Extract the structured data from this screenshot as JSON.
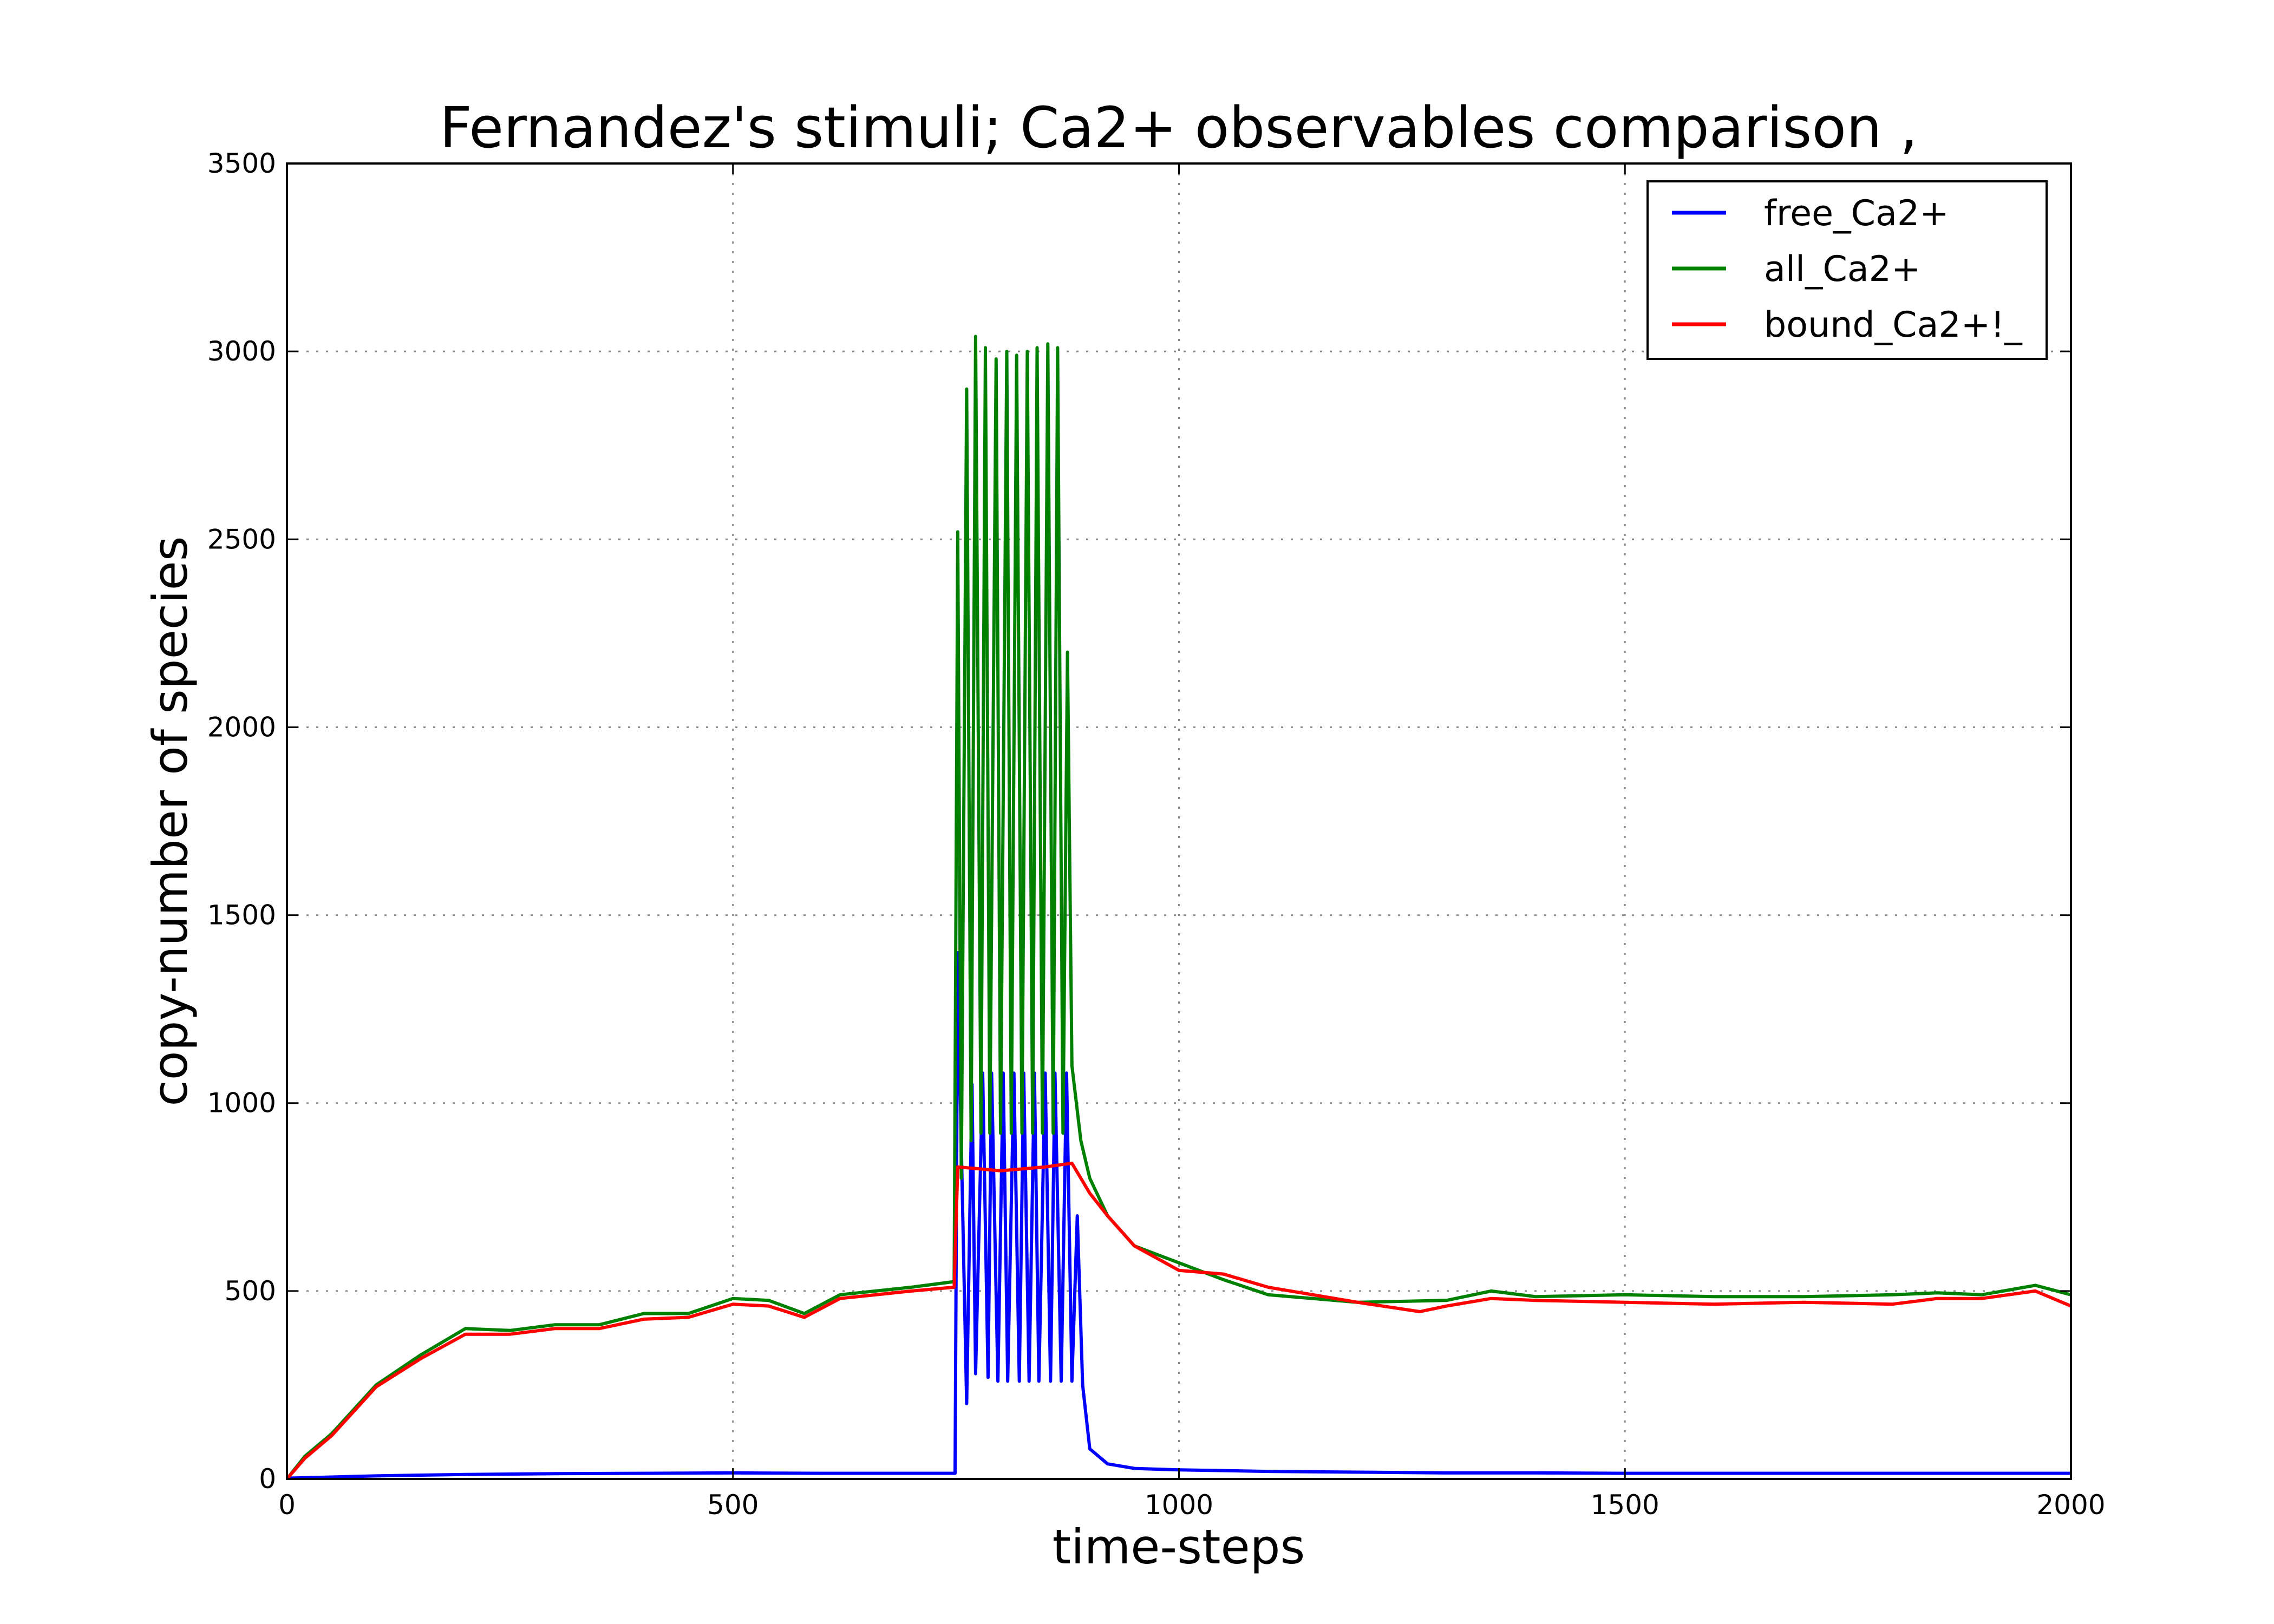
{
  "chart_data": {
    "type": "line",
    "title": "Fernandez's stimuli; Ca2+ observables comparison ,",
    "xlabel": "time-steps",
    "ylabel": "copy-number of species",
    "xlim": [
      0,
      2000
    ],
    "ylim": [
      0,
      3500
    ],
    "xticks": [
      0,
      500,
      1000,
      1500,
      2000
    ],
    "yticks": [
      0,
      500,
      1000,
      1500,
      2000,
      2500,
      3000,
      3500
    ],
    "grid": true,
    "legend_position": "top-right",
    "series": [
      {
        "name": "free_Ca2+",
        "color": "#0000ff",
        "x": [
          0,
          50,
          100,
          200,
          300,
          400,
          500,
          600,
          700,
          749,
          752,
          755,
          762,
          768,
          772,
          780,
          786,
          790,
          797,
          803,
          808,
          815,
          821,
          826,
          832,
          838,
          843,
          850,
          856,
          861,
          868,
          874,
          880,
          886,
          892,
          900,
          920,
          950,
          1000,
          1100,
          1200,
          1300,
          1400,
          1500,
          1600,
          1700,
          1800,
          1900,
          2000
        ],
        "y": [
          2,
          5,
          8,
          12,
          14,
          15,
          16,
          15,
          15,
          15,
          1400,
          1000,
          200,
          1050,
          280,
          1080,
          270,
          1080,
          260,
          1080,
          260,
          1080,
          260,
          1080,
          260,
          1080,
          260,
          1080,
          260,
          1080,
          260,
          1080,
          260,
          700,
          250,
          80,
          40,
          28,
          24,
          20,
          18,
          16,
          16,
          15,
          15,
          15,
          15,
          15,
          15
        ]
      },
      {
        "name": "all_Ca2+",
        "color": "#008000",
        "x": [
          0,
          20,
          50,
          100,
          150,
          200,
          250,
          300,
          350,
          400,
          450,
          500,
          540,
          580,
          620,
          700,
          748,
          752,
          756,
          762,
          767,
          772,
          778,
          783,
          788,
          795,
          800,
          807,
          812,
          818,
          824,
          830,
          836,
          841,
          847,
          853,
          859,
          864,
          870,
          875,
          880,
          890,
          900,
          920,
          950,
          1000,
          1050,
          1100,
          1200,
          1300,
          1350,
          1400,
          1500,
          1600,
          1700,
          1800,
          1850,
          1900,
          1960,
          2000
        ],
        "y": [
          0,
          60,
          120,
          250,
          330,
          400,
          395,
          410,
          410,
          440,
          440,
          480,
          475,
          440,
          490,
          510,
          525,
          2520,
          800,
          2900,
          900,
          3040,
          920,
          3010,
          920,
          2980,
          920,
          3000,
          920,
          2990,
          920,
          3000,
          920,
          3010,
          920,
          3020,
          920,
          3010,
          920,
          2200,
          1100,
          900,
          800,
          700,
          620,
          575,
          530,
          490,
          470,
          475,
          500,
          485,
          490,
          485,
          485,
          490,
          495,
          490,
          515,
          490
        ]
      },
      {
        "name": "bound_Ca2+!_",
        "color": "#ff0000",
        "x": [
          0,
          20,
          50,
          100,
          150,
          200,
          250,
          300,
          350,
          400,
          450,
          500,
          540,
          580,
          620,
          700,
          748,
          752,
          800,
          850,
          880,
          900,
          920,
          950,
          1000,
          1050,
          1100,
          1200,
          1270,
          1300,
          1350,
          1400,
          1500,
          1600,
          1700,
          1800,
          1850,
          1900,
          1960,
          2000
        ],
        "y": [
          0,
          55,
          115,
          245,
          320,
          385,
          385,
          400,
          400,
          425,
          430,
          465,
          460,
          430,
          480,
          500,
          510,
          830,
          820,
          830,
          840,
          760,
          700,
          620,
          555,
          545,
          510,
          470,
          445,
          460,
          480,
          475,
          470,
          465,
          470,
          465,
          480,
          480,
          500,
          460
        ]
      }
    ]
  }
}
